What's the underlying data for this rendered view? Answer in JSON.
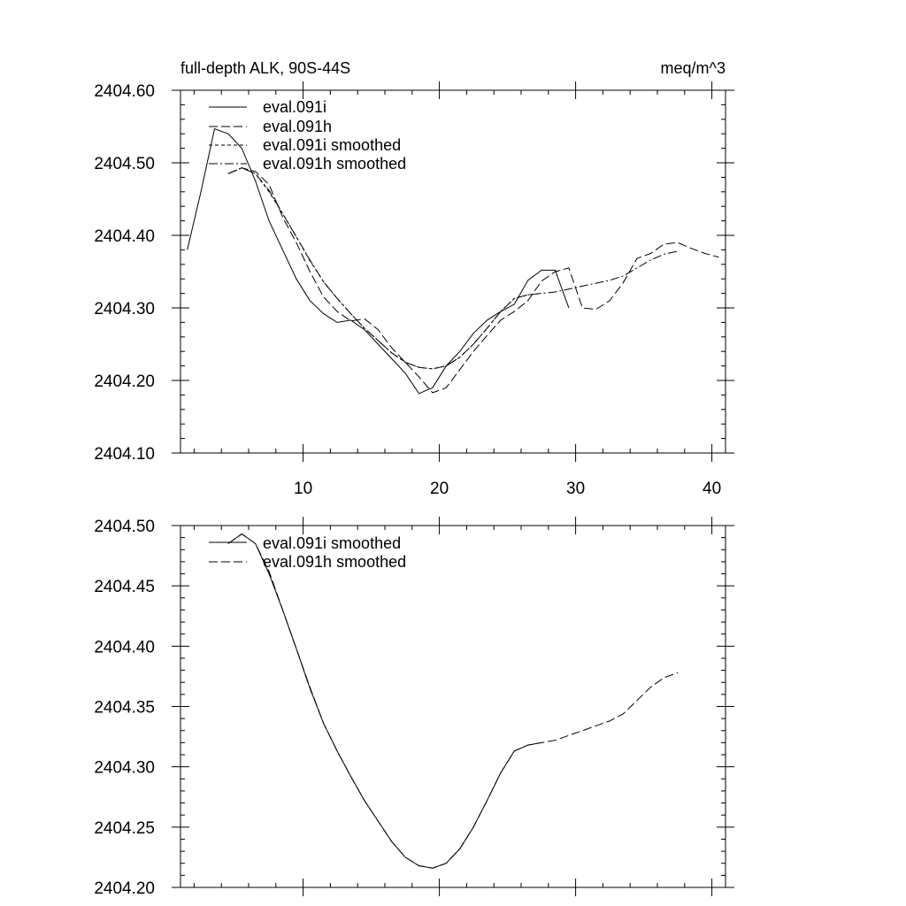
{
  "chart_data": [
    {
      "type": "line",
      "title": "full-depth ALK, 90S-44S",
      "units": "meq/m^3",
      "xlim": [
        1,
        41
      ],
      "ylim": [
        2404.1,
        2404.6
      ],
      "x_ticks": [
        10,
        20,
        30,
        40
      ],
      "x_tick_labels": [
        "10",
        "20",
        "30",
        "40"
      ],
      "y_ticks": [
        2404.1,
        2404.2,
        2404.3,
        2404.4,
        2404.5,
        2404.6
      ],
      "y_tick_labels": [
        "2404.10",
        "2404.20",
        "2404.30",
        "2404.40",
        "2404.50",
        "2404.60"
      ],
      "legend_position": "top-left",
      "series": [
        {
          "name": "eval.091i",
          "dash": "solid",
          "x": [
            1.5,
            2.5,
            3.5,
            4.5,
            5.5,
            6.5,
            7.5,
            8.5,
            9.5,
            10.5,
            11.5,
            12.5,
            13.5,
            14.5,
            15.5,
            16.5,
            17.5,
            18.5,
            19.5,
            20.5,
            21.5,
            22.5,
            23.5,
            24.5,
            25.5,
            26.5,
            27.5,
            28.5,
            29.5
          ],
          "values": [
            2404.38,
            2404.46,
            2404.547,
            2404.54,
            2404.52,
            2404.475,
            2404.42,
            2404.38,
            2404.34,
            2404.31,
            2404.292,
            2404.28,
            2404.283,
            2404.27,
            2404.25,
            2404.23,
            2404.21,
            2404.182,
            2404.19,
            2404.22,
            2404.24,
            2404.265,
            2404.283,
            2404.295,
            2404.305,
            2404.338,
            2404.352,
            2404.352,
            2404.3
          ]
        },
        {
          "name": "eval.091h",
          "dash": "long-dash",
          "x": [
            4.5,
            5.5,
            6.5,
            7.5,
            8.5,
            9.5,
            10.5,
            11.5,
            12.5,
            13.5,
            14.5,
            15.5,
            16.5,
            17.5,
            18.5,
            19.5,
            20.5,
            21.5,
            22.5,
            23.5,
            24.5,
            25.5,
            26.5,
            27.5,
            28.5,
            29.5,
            30.5,
            31.5,
            32.5,
            33.5,
            34.5,
            35.5,
            36.5,
            37.5,
            38.5,
            39.5,
            40.5
          ],
          "values": [
            2404.485,
            2404.493,
            2404.488,
            2404.47,
            2404.425,
            2404.39,
            2404.35,
            2404.315,
            2404.295,
            2404.282,
            2404.285,
            2404.27,
            2404.245,
            2404.225,
            2404.205,
            2404.183,
            2404.19,
            2404.215,
            2404.24,
            2404.262,
            2404.283,
            2404.295,
            2404.31,
            2404.337,
            2404.35,
            2404.355,
            2404.3,
            2404.298,
            2404.31,
            2404.335,
            2404.368,
            2404.375,
            2404.388,
            2404.39,
            2404.382,
            2404.375,
            2404.37
          ]
        },
        {
          "name": "eval.091i smoothed",
          "dash": "short-dash",
          "x": [
            4.5,
            5.5,
            6.5,
            7.5,
            8.5,
            9.5,
            10.5,
            11.5,
            12.5,
            13.5,
            14.5,
            15.5,
            16.5,
            17.5,
            18.5,
            19.5,
            20.5,
            21.5,
            22.5,
            23.5,
            24.5,
            25.5,
            26.5,
            27.5
          ],
          "values": [
            2404.485,
            2404.493,
            2404.485,
            2404.46,
            2404.43,
            2404.398,
            2404.365,
            2404.336,
            2404.313,
            2404.292,
            2404.272,
            2404.255,
            2404.238,
            2404.225,
            2404.218,
            2404.216,
            2404.22,
            2404.232,
            2404.25,
            2404.272,
            2404.295,
            2404.313,
            2404.318,
            2404.32
          ]
        },
        {
          "name": "eval.091h smoothed",
          "dash": "dash-dot",
          "x": [
            4.5,
            5.5,
            6.5,
            7.5,
            8.5,
            9.5,
            10.5,
            11.5,
            12.5,
            13.5,
            14.5,
            15.5,
            16.5,
            17.5,
            18.5,
            19.5,
            20.5,
            21.5,
            22.5,
            23.5,
            24.5,
            25.5,
            26.5,
            27.5,
            28.5,
            29.5,
            30.5,
            31.5,
            32.5,
            33.5,
            34.5,
            35.5,
            36.5,
            37.5
          ],
          "values": [
            2404.485,
            2404.493,
            2404.485,
            2404.462,
            2404.43,
            2404.398,
            2404.366,
            2404.336,
            2404.313,
            2404.292,
            2404.272,
            2404.255,
            2404.238,
            2404.225,
            2404.218,
            2404.216,
            2404.22,
            2404.232,
            2404.25,
            2404.272,
            2404.295,
            2404.313,
            2404.318,
            2404.32,
            2404.322,
            2404.326,
            2404.33,
            2404.334,
            2404.338,
            2404.344,
            2404.355,
            2404.366,
            2404.374,
            2404.378
          ]
        }
      ]
    },
    {
      "type": "line",
      "title": "",
      "xlim": [
        1,
        41
      ],
      "ylim": [
        2404.2,
        2404.5
      ],
      "x_ticks": [
        10,
        20,
        30,
        40
      ],
      "y_ticks": [
        2404.2,
        2404.25,
        2404.3,
        2404.35,
        2404.4,
        2404.45,
        2404.5
      ],
      "y_tick_labels": [
        "2404.20",
        "2404.25",
        "2404.30",
        "2404.35",
        "2404.40",
        "2404.45",
        "2404.50"
      ],
      "legend_position": "top-left",
      "series": [
        {
          "name": "eval.091i smoothed",
          "dash": "solid",
          "x": [
            4.5,
            5.5,
            6.5,
            7.5,
            8.5,
            9.5,
            10.5,
            11.5,
            12.5,
            13.5,
            14.5,
            15.5,
            16.5,
            17.5,
            18.5,
            19.5,
            20.5,
            21.5,
            22.5,
            23.5,
            24.5,
            25.5,
            26.5,
            27.5
          ],
          "values": [
            2404.485,
            2404.493,
            2404.485,
            2404.46,
            2404.43,
            2404.398,
            2404.365,
            2404.336,
            2404.313,
            2404.292,
            2404.272,
            2404.255,
            2404.238,
            2404.225,
            2404.218,
            2404.216,
            2404.22,
            2404.232,
            2404.25,
            2404.272,
            2404.295,
            2404.313,
            2404.318,
            2404.32
          ]
        },
        {
          "name": "eval.091h smoothed",
          "dash": "long-dash",
          "x": [
            4.5,
            5.5,
            6.5,
            7.5,
            8.5,
            9.5,
            10.5,
            11.5,
            12.5,
            13.5,
            14.5,
            15.5,
            16.5,
            17.5,
            18.5,
            19.5,
            20.5,
            21.5,
            22.5,
            23.5,
            24.5,
            25.5,
            26.5,
            27.5,
            28.5,
            29.5,
            30.5,
            31.5,
            32.5,
            33.5,
            34.5,
            35.5,
            36.5,
            37.5
          ],
          "values": [
            2404.485,
            2404.493,
            2404.485,
            2404.462,
            2404.43,
            2404.398,
            2404.366,
            2404.336,
            2404.313,
            2404.292,
            2404.272,
            2404.255,
            2404.238,
            2404.225,
            2404.218,
            2404.216,
            2404.22,
            2404.232,
            2404.25,
            2404.272,
            2404.295,
            2404.313,
            2404.318,
            2404.32,
            2404.322,
            2404.326,
            2404.33,
            2404.334,
            2404.338,
            2404.344,
            2404.355,
            2404.366,
            2404.374,
            2404.378
          ]
        }
      ]
    }
  ]
}
